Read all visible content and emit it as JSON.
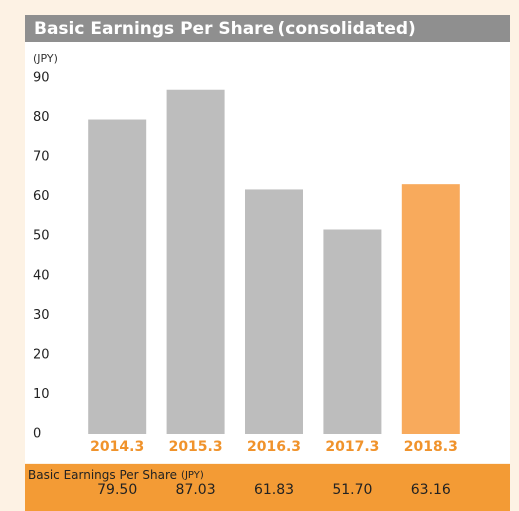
{
  "chart_data": {
    "type": "bar",
    "title": "Basic Earnings Per Share (consolidated)",
    "y_unit": "(JPY)",
    "categories": [
      "2014.3",
      "2015.3",
      "2016.3",
      "2017.3",
      "2018.3"
    ],
    "values": [
      79.5,
      87.03,
      61.83,
      51.7,
      63.16
    ],
    "value_labels": [
      "79.50",
      "87.03",
      "61.83",
      "51.70",
      "63.16"
    ],
    "colors": [
      "#bdbdbd",
      "#bdbdbd",
      "#bdbdbd",
      "#bdbdbd",
      "#f8aa5c"
    ],
    "ylim": [
      0,
      90
    ],
    "yticks": [
      0,
      10,
      20,
      30,
      40,
      50,
      60,
      70,
      80,
      90
    ],
    "grid": false,
    "table_label": "Basic Earnings Per Share",
    "table_unit": "(JPY)"
  }
}
